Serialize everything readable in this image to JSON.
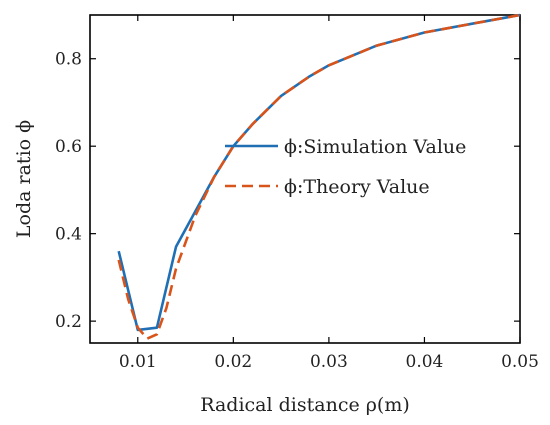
{
  "chart_data": {
    "type": "line",
    "xlabel": "Radical distance ρ(m)",
    "ylabel": "Loda ratio  ϕ",
    "xlim": [
      0.005,
      0.05
    ],
    "ylim": [
      0.15,
      0.9
    ],
    "xticks": [
      0.01,
      0.02,
      0.03,
      0.04,
      0.05
    ],
    "xtick_labels": [
      "0.01",
      "0.02",
      "0.03",
      "0.04",
      "0.05"
    ],
    "yticks": [
      0.2,
      0.4,
      0.6,
      0.8
    ],
    "ytick_labels": [
      "0.2",
      "0.4",
      "0.6",
      "0.8"
    ],
    "grid": false,
    "legend_position": "center-right",
    "series": [
      {
        "name": "ϕ:Simulation Value",
        "color": "#1f6fb5",
        "dash": "solid",
        "x": [
          0.008,
          0.01,
          0.012,
          0.014,
          0.016,
          0.018,
          0.02,
          0.022,
          0.025,
          0.028,
          0.03,
          0.035,
          0.04,
          0.045,
          0.05
        ],
        "y": [
          0.36,
          0.18,
          0.185,
          0.37,
          0.45,
          0.53,
          0.6,
          0.65,
          0.715,
          0.76,
          0.785,
          0.83,
          0.86,
          0.88,
          0.9
        ]
      },
      {
        "name": "ϕ:Theory Value",
        "color": "#d9541a",
        "dash": "dashed",
        "x": [
          0.008,
          0.009,
          0.01,
          0.011,
          0.012,
          0.013,
          0.014,
          0.016,
          0.018,
          0.02,
          0.022,
          0.025,
          0.028,
          0.03,
          0.035,
          0.04,
          0.045,
          0.05
        ],
        "y": [
          0.34,
          0.25,
          0.185,
          0.16,
          0.17,
          0.23,
          0.32,
          0.44,
          0.53,
          0.6,
          0.65,
          0.715,
          0.76,
          0.785,
          0.83,
          0.86,
          0.88,
          0.9
        ]
      }
    ]
  }
}
